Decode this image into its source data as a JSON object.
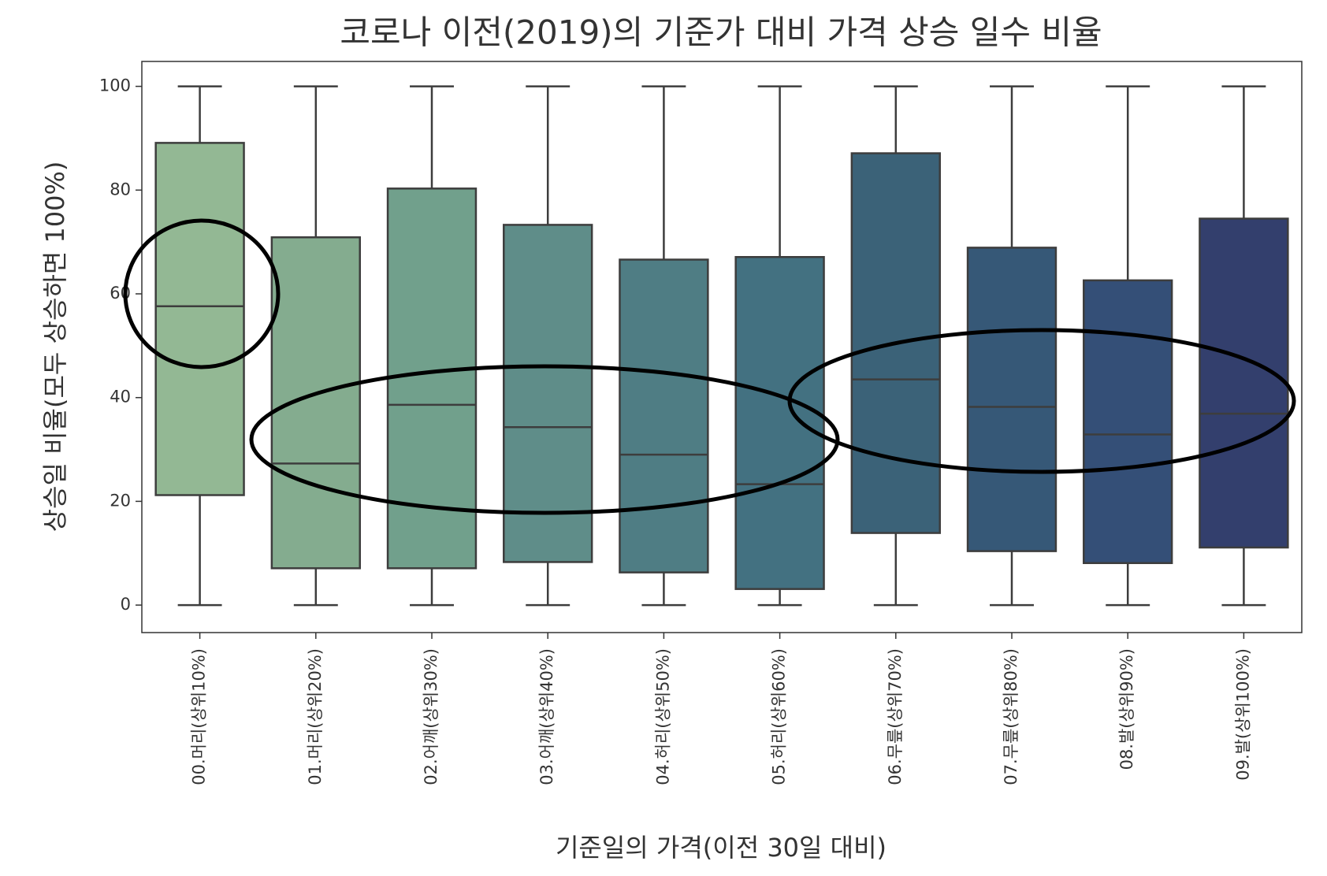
{
  "chart_data": {
    "type": "box",
    "title": "코로나 이전(2019)의 기준가 대비 가격 상승 일수 비율",
    "x_label": "기준일의 가격(이전 30일 대비)",
    "y_label": "상승일 비율(모두 상승하면 100%)",
    "categories": [
      "00.머리(상위10%)",
      "01.머리(상위20%)",
      "02.어깨(상위30%)",
      "03.어깨(상위40%)",
      "04.허리(상위50%)",
      "05.허리(상위60%)",
      "06.무릎(상위70%)",
      "07.무릎(상위80%)",
      "08.발(상위90%)",
      "09.발(상위100%)"
    ],
    "min": [
      0,
      0,
      0,
      0,
      0,
      0,
      0,
      0,
      0,
      0
    ],
    "q1": [
      21.2,
      7.1,
      7.1,
      8.3,
      6.3,
      3.1,
      13.9,
      10.4,
      8.1,
      11.1
    ],
    "median": [
      57.6,
      27.3,
      38.6,
      34.3,
      29.0,
      23.3,
      43.5,
      38.2,
      32.9,
      36.9
    ],
    "q3": [
      89.1,
      70.9,
      80.3,
      73.3,
      66.6,
      67.1,
      87.1,
      68.9,
      62.6,
      74.5
    ],
    "max": [
      100,
      100,
      100,
      100,
      100,
      100,
      100,
      100,
      100,
      100
    ],
    "colors": [
      "#93b894",
      "#84ac8f",
      "#71a08c",
      "#5f8d89",
      "#4f7d84",
      "#437181",
      "#3b6278",
      "#365877",
      "#344f77",
      "#333f6d"
    ],
    "ylim": [
      -5.3,
      104.8
    ],
    "yticks": [
      0,
      20,
      40,
      60,
      80,
      100
    ]
  }
}
